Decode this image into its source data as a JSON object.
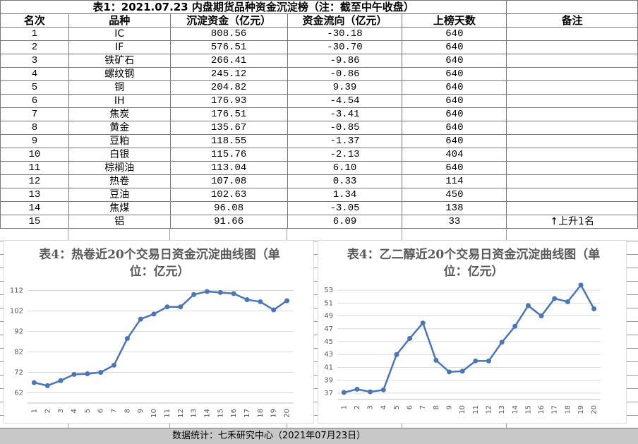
{
  "table": {
    "title": "表1：2021.07.23 内盘期货品种资金沉淀榜（注：截至中午收盘）",
    "header": [
      "名次",
      "品种",
      "沉淀资金（亿元）",
      "资金流向（亿元）",
      "上榜天数",
      "备注"
    ],
    "rows": [
      [
        "1",
        "IC",
        "808.56",
        "-30.18",
        "640"
      ],
      [
        "2",
        "IF",
        "576.51",
        "-30.70",
        "640"
      ],
      [
        "3",
        "铁矿石",
        "266.41",
        "-9.86",
        "640"
      ],
      [
        "4",
        "螺纹钢",
        "245.12",
        "-0.86",
        "640"
      ],
      [
        "5",
        "铜",
        "204.82",
        "9.39",
        "640"
      ],
      [
        "6",
        "IH",
        "176.93",
        "-4.54",
        "640"
      ],
      [
        "7",
        "焦炭",
        "176.51",
        "-3.41",
        "640"
      ],
      [
        "8",
        "黄金",
        "135.67",
        "-0.85",
        "640"
      ],
      [
        "9",
        "豆粕",
        "118.55",
        "-1.37",
        "640"
      ],
      [
        "10",
        "白银",
        "115.76",
        "-2.13",
        "404"
      ],
      [
        "11",
        "棕榈油",
        "113.04",
        "6.10",
        "640"
      ],
      [
        "12",
        "热卷",
        "107.08",
        "0.33",
        "114"
      ],
      [
        "13",
        "豆油",
        "102.63",
        "1.34",
        "450"
      ],
      [
        "14",
        "焦煤",
        "96.08",
        "-3.05",
        "138"
      ],
      [
        "15",
        "铝",
        "91.66",
        "6.09",
        "33",
        "↑上升1名"
      ]
    ]
  },
  "chart_data": [
    {
      "type": "line",
      "title": "表4：热卷近20个交易日资金沉淀曲线图（单位：亿元）",
      "categories": [
        "1",
        "2",
        "3",
        "4",
        "5",
        "6",
        "7",
        "8",
        "9",
        "10",
        "11",
        "12",
        "13",
        "14",
        "15",
        "16",
        "17",
        "18",
        "19",
        "20"
      ],
      "values": [
        67,
        65.5,
        68,
        71,
        71.3,
        72,
        75.5,
        88.5,
        98,
        100.5,
        104,
        104,
        110,
        111.5,
        111,
        110.5,
        107.5,
        106.5,
        102.5,
        107
      ],
      "color": "#4a76b8",
      "ylim": [
        57,
        117
      ],
      "yticks": [
        62,
        72,
        82,
        92,
        102,
        112
      ],
      "grid": true
    },
    {
      "type": "line",
      "title": "表4：乙二醇近20个交易日资金沉淀曲线图（单位：亿元）",
      "categories": [
        "1",
        "2",
        "3",
        "4",
        "5",
        "6",
        "7",
        "8",
        "9",
        "10",
        "11",
        "12",
        "13",
        "14",
        "15",
        "16",
        "17",
        "18",
        "19",
        "20"
      ],
      "values": [
        37.1,
        37.6,
        37.2,
        37.5,
        43,
        45.5,
        47.9,
        42.1,
        40.3,
        40.4,
        42,
        42,
        44.9,
        47.4,
        50.6,
        49,
        51.7,
        51.2,
        53.8,
        50.1
      ],
      "color": "#4a76b8",
      "ylim": [
        36,
        54
      ],
      "yticks": [
        37,
        39,
        41,
        43,
        45,
        47,
        49,
        51,
        53
      ],
      "grid": true
    }
  ],
  "footer": "数据统计：七禾研究中心（2021年07月23日）"
}
